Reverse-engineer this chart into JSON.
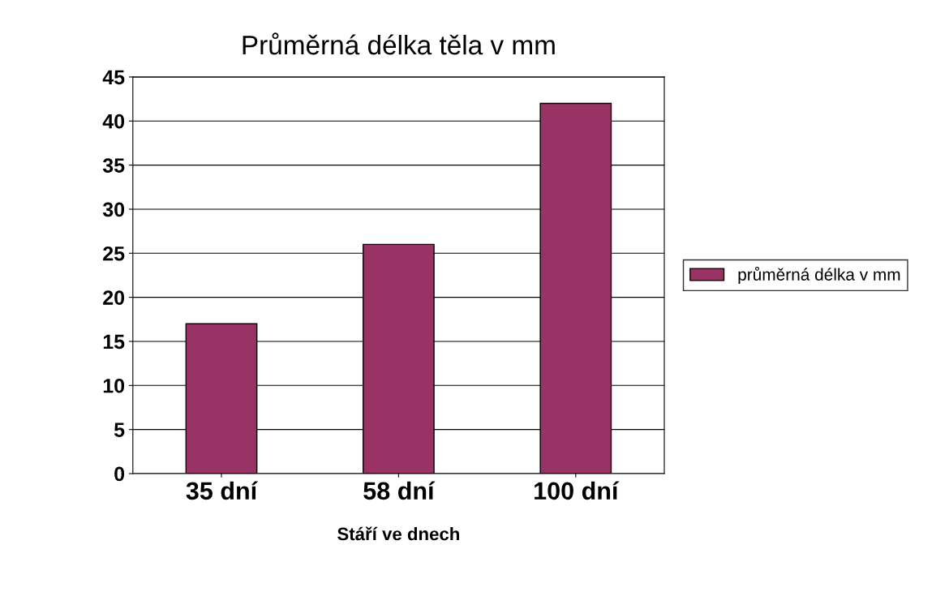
{
  "chart_data": {
    "type": "bar",
    "title": "Průměrná délka těla v mm",
    "xlabel": "Stáří ve dnech",
    "categories": [
      "35 dní",
      "58 dní",
      "100 dní"
    ],
    "series": [
      {
        "name": "průměrná délka v mm",
        "color": "#993366",
        "values": [
          17,
          26,
          42
        ]
      }
    ],
    "ylim": [
      0,
      45
    ],
    "yticks": [
      0,
      5,
      10,
      15,
      20,
      25,
      30,
      35,
      40,
      45
    ],
    "grid": "y",
    "legend": "right"
  }
}
